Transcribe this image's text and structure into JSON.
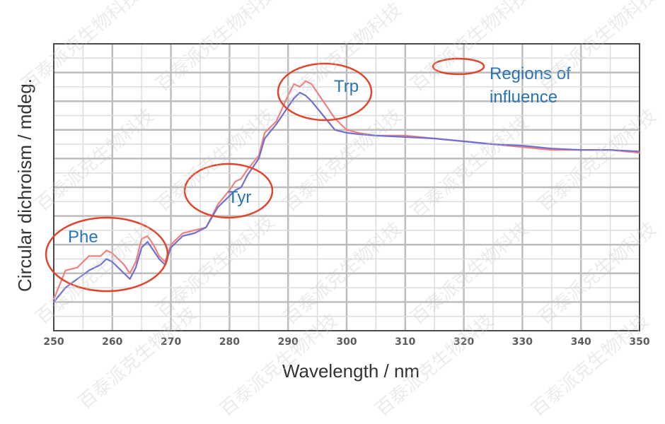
{
  "chart_data": {
    "type": "line",
    "xlabel": "Wavelength / nm",
    "ylabel": "Circular dichroism / mdeg.",
    "xlim": [
      250,
      350
    ],
    "x_ticks": [
      250,
      260,
      270,
      280,
      290,
      300,
      310,
      320,
      330,
      340,
      350
    ],
    "ylim": [
      0,
      10
    ],
    "grid": true,
    "y_tick_labels_shown": false,
    "series": [
      {
        "color": "#f08080",
        "points": [
          [
            250,
            1.1
          ],
          [
            252,
            2.1
          ],
          [
            254,
            2.2
          ],
          [
            256,
            2.6
          ],
          [
            258,
            2.6
          ],
          [
            259,
            2.8
          ],
          [
            260,
            2.7
          ],
          [
            262,
            2.3
          ],
          [
            263,
            2.0
          ],
          [
            264,
            2.4
          ],
          [
            265,
            3.2
          ],
          [
            266,
            3.3
          ],
          [
            267,
            3.0
          ],
          [
            268,
            2.6
          ],
          [
            269,
            2.4
          ],
          [
            270,
            3.0
          ],
          [
            272,
            3.4
          ],
          [
            274,
            3.5
          ],
          [
            276,
            3.6
          ],
          [
            278,
            4.4
          ],
          [
            280,
            4.9
          ],
          [
            281,
            5.2
          ],
          [
            282,
            5.3
          ],
          [
            283,
            5.6
          ],
          [
            285,
            6.1
          ],
          [
            286,
            6.9
          ],
          [
            288,
            7.3
          ],
          [
            290,
            8.2
          ],
          [
            291,
            8.6
          ],
          [
            292,
            8.5
          ],
          [
            293,
            8.7
          ],
          [
            294,
            8.6
          ],
          [
            296,
            8.0
          ],
          [
            298,
            7.4
          ],
          [
            300,
            7.0
          ],
          [
            302,
            6.9
          ],
          [
            305,
            6.8
          ],
          [
            310,
            6.8
          ],
          [
            315,
            6.7
          ],
          [
            320,
            6.6
          ],
          [
            325,
            6.5
          ],
          [
            330,
            6.4
          ],
          [
            335,
            6.3
          ],
          [
            340,
            6.3
          ],
          [
            345,
            6.3
          ],
          [
            350,
            6.2
          ]
        ]
      },
      {
        "color": "#7070d0",
        "points": [
          [
            250,
            1.0
          ],
          [
            252,
            1.5
          ],
          [
            254,
            1.8
          ],
          [
            256,
            2.1
          ],
          [
            258,
            2.3
          ],
          [
            259,
            2.5
          ],
          [
            260,
            2.4
          ],
          [
            262,
            2.0
          ],
          [
            263,
            1.8
          ],
          [
            264,
            2.2
          ],
          [
            265,
            2.9
          ],
          [
            266,
            3.1
          ],
          [
            267,
            2.8
          ],
          [
            268,
            2.5
          ],
          [
            269,
            2.3
          ],
          [
            270,
            2.9
          ],
          [
            272,
            3.3
          ],
          [
            274,
            3.4
          ],
          [
            276,
            3.6
          ],
          [
            278,
            4.3
          ],
          [
            280,
            4.7
          ],
          [
            281,
            4.9
          ],
          [
            282,
            5.0
          ],
          [
            283,
            5.4
          ],
          [
            285,
            6.0
          ],
          [
            286,
            6.7
          ],
          [
            288,
            7.2
          ],
          [
            290,
            7.8
          ],
          [
            291,
            8.1
          ],
          [
            292,
            8.3
          ],
          [
            293,
            8.2
          ],
          [
            294,
            8.0
          ],
          [
            296,
            7.5
          ],
          [
            298,
            7.0
          ],
          [
            300,
            6.9
          ],
          [
            302,
            6.85
          ],
          [
            305,
            6.8
          ],
          [
            310,
            6.75
          ],
          [
            315,
            6.7
          ],
          [
            320,
            6.6
          ],
          [
            325,
            6.5
          ],
          [
            330,
            6.45
          ],
          [
            335,
            6.35
          ],
          [
            340,
            6.3
          ],
          [
            345,
            6.3
          ],
          [
            350,
            6.25
          ]
        ]
      }
    ],
    "annotations": [
      {
        "text": "Phe",
        "region_nm": [
          250,
          270
        ]
      },
      {
        "text": "Tyr",
        "region_nm": [
          275,
          284
        ]
      },
      {
        "text": "Trp",
        "region_nm": [
          288,
          305
        ]
      }
    ],
    "legend": {
      "text_line1": "Regions of",
      "text_line2": "influence",
      "placement": "top-right"
    }
  },
  "watermark": {
    "text": "百泰派克生物科技"
  }
}
